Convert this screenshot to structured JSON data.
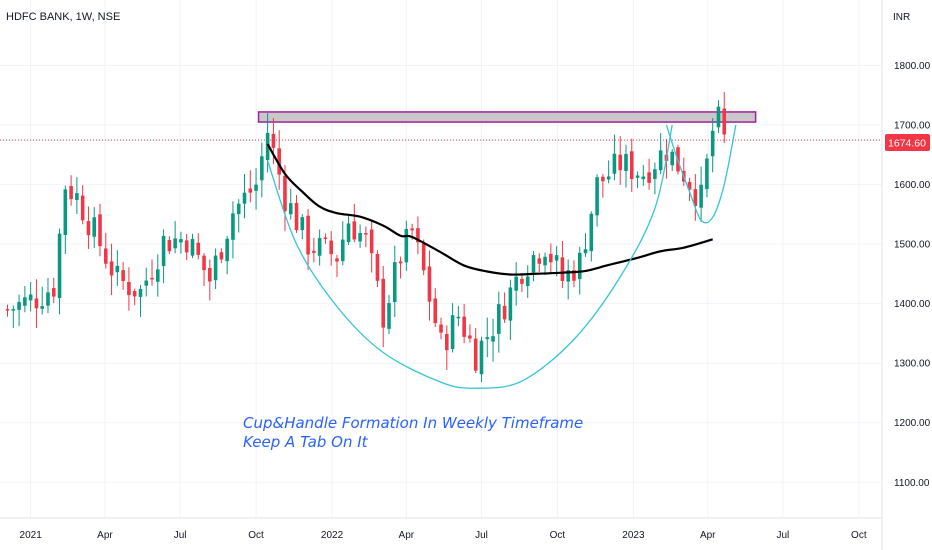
{
  "header": {
    "symbol_text": "HDFC BANK, 1W, NSE",
    "currency": "INR"
  },
  "colors": {
    "up": "#089981",
    "down": "#f23645",
    "ma": "#000000",
    "cup": "#36c5d6",
    "zone_fill": "#c8c8c8",
    "zone_border": "#a020a0",
    "last_price_line": "#f23645",
    "grid": "#f0f3fa",
    "annotation": "#2962ff"
  },
  "chart_data": {
    "type": "candlestick",
    "title": "HDFC BANK, 1W, NSE",
    "ylabel": "INR",
    "ylim": [
      1040,
      1910
    ],
    "y_ticks": [
      "1800.00",
      "1700.00",
      "1600.00",
      "1500.00",
      "1400.00",
      "1300.00",
      "1200.00",
      "1100.00"
    ],
    "x_range": [
      "2020-12",
      "2023-10"
    ],
    "x_ticks": [
      {
        "date": "2021-01-01",
        "label": "2021"
      },
      {
        "date": "2021-04-01",
        "label": "Apr"
      },
      {
        "date": "2021-07-01",
        "label": "Jul"
      },
      {
        "date": "2021-10-01",
        "label": "Oct"
      },
      {
        "date": "2022-01-01",
        "label": "2022"
      },
      {
        "date": "2022-04-01",
        "label": "Apr"
      },
      {
        "date": "2022-07-01",
        "label": "Jul"
      },
      {
        "date": "2022-10-01",
        "label": "Oct"
      },
      {
        "date": "2023-01-01",
        "label": "2023"
      },
      {
        "date": "2023-04-01",
        "label": "Apr"
      },
      {
        "date": "2023-07-01",
        "label": "Jul"
      },
      {
        "date": "2023-10-01",
        "label": "Oct"
      }
    ],
    "last_price": 1674.6,
    "last_price_label": "1674.60",
    "resistance_zone": [
      1705,
      1722
    ],
    "close_trend": [
      {
        "date": "2020-12-04",
        "close": 1390
      },
      {
        "date": "2021-01-08",
        "close": 1410
      },
      {
        "date": "2021-01-29",
        "close": 1430
      },
      {
        "date": "2021-02-12",
        "close": 1600
      },
      {
        "date": "2021-02-26",
        "close": 1580
      },
      {
        "date": "2021-03-19",
        "close": 1520
      },
      {
        "date": "2021-04-16",
        "close": 1440
      },
      {
        "date": "2021-05-14",
        "close": 1420
      },
      {
        "date": "2021-06-11",
        "close": 1505
      },
      {
        "date": "2021-07-09",
        "close": 1510
      },
      {
        "date": "2021-08-06",
        "close": 1440
      },
      {
        "date": "2021-09-03",
        "close": 1555
      },
      {
        "date": "2021-10-01",
        "close": 1600
      },
      {
        "date": "2021-10-15",
        "close": 1690
      },
      {
        "date": "2021-11-05",
        "close": 1580
      },
      {
        "date": "2021-12-03",
        "close": 1500
      },
      {
        "date": "2022-01-07",
        "close": 1480
      },
      {
        "date": "2022-01-21",
        "close": 1540
      },
      {
        "date": "2022-02-11",
        "close": 1505
      },
      {
        "date": "2022-03-04",
        "close": 1380
      },
      {
        "date": "2022-03-25",
        "close": 1480
      },
      {
        "date": "2022-04-08",
        "close": 1520
      },
      {
        "date": "2022-04-22",
        "close": 1450
      },
      {
        "date": "2022-05-13",
        "close": 1330
      },
      {
        "date": "2022-06-03",
        "close": 1380
      },
      {
        "date": "2022-06-24",
        "close": 1315
      },
      {
        "date": "2022-07-22",
        "close": 1380
      },
      {
        "date": "2022-08-19",
        "close": 1460
      },
      {
        "date": "2022-09-16",
        "close": 1500
      },
      {
        "date": "2022-10-07",
        "close": 1440
      },
      {
        "date": "2022-10-28",
        "close": 1470
      },
      {
        "date": "2022-11-18",
        "close": 1600
      },
      {
        "date": "2022-12-16",
        "close": 1635
      },
      {
        "date": "2023-01-13",
        "close": 1620
      },
      {
        "date": "2023-02-10",
        "close": 1660
      },
      {
        "date": "2023-03-03",
        "close": 1620
      },
      {
        "date": "2023-03-24",
        "close": 1575
      },
      {
        "date": "2023-04-07",
        "close": 1690
      },
      {
        "date": "2023-04-14",
        "close": 1705
      },
      {
        "date": "2023-04-21",
        "close": 1674.6
      }
    ],
    "moving_average": [
      {
        "date": "2021-10-15",
        "value": 1668
      },
      {
        "date": "2021-11-05",
        "value": 1618
      },
      {
        "date": "2021-11-26",
        "value": 1588
      },
      {
        "date": "2021-12-17",
        "value": 1563
      },
      {
        "date": "2022-01-07",
        "value": 1552
      },
      {
        "date": "2022-02-04",
        "value": 1546
      },
      {
        "date": "2022-03-04",
        "value": 1531
      },
      {
        "date": "2022-03-25",
        "value": 1514
      },
      {
        "date": "2022-04-08",
        "value": 1512
      },
      {
        "date": "2022-05-13",
        "value": 1486
      },
      {
        "date": "2022-06-10",
        "value": 1464
      },
      {
        "date": "2022-07-08",
        "value": 1454
      },
      {
        "date": "2022-08-05",
        "value": 1449
      },
      {
        "date": "2022-09-02",
        "value": 1450
      },
      {
        "date": "2022-10-07",
        "value": 1452
      },
      {
        "date": "2022-11-04",
        "value": 1455
      },
      {
        "date": "2022-12-02",
        "value": 1465
      },
      {
        "date": "2023-01-06",
        "value": 1477
      },
      {
        "date": "2023-02-03",
        "value": 1488
      },
      {
        "date": "2023-03-03",
        "value": 1494
      },
      {
        "date": "2023-04-07",
        "value": 1508
      }
    ],
    "cup_curve": [
      {
        "date": "2021-10-15",
        "value": 1640
      },
      {
        "date": "2021-11-19",
        "value": 1500
      },
      {
        "date": "2022-01-07",
        "value": 1395
      },
      {
        "date": "2022-03-04",
        "value": 1318
      },
      {
        "date": "2022-05-13",
        "value": 1268
      },
      {
        "date": "2022-06-24",
        "value": 1258
      },
      {
        "date": "2022-08-19",
        "value": 1270
      },
      {
        "date": "2022-10-21",
        "value": 1340
      },
      {
        "date": "2022-12-16",
        "value": 1445
      },
      {
        "date": "2023-01-27",
        "value": 1560
      },
      {
        "date": "2023-02-17",
        "value": 1700
      }
    ],
    "handle_curve": [
      {
        "date": "2023-02-10",
        "value": 1700
      },
      {
        "date": "2023-02-24",
        "value": 1640
      },
      {
        "date": "2023-03-10",
        "value": 1588
      },
      {
        "date": "2023-03-24",
        "value": 1540
      },
      {
        "date": "2023-04-07",
        "value": 1545
      },
      {
        "date": "2023-04-21",
        "value": 1600
      },
      {
        "date": "2023-05-05",
        "value": 1700
      }
    ],
    "annotations": [
      "Cup&Handle Formation In Weekly Timeframe",
      "Keep A Tab On It"
    ]
  }
}
